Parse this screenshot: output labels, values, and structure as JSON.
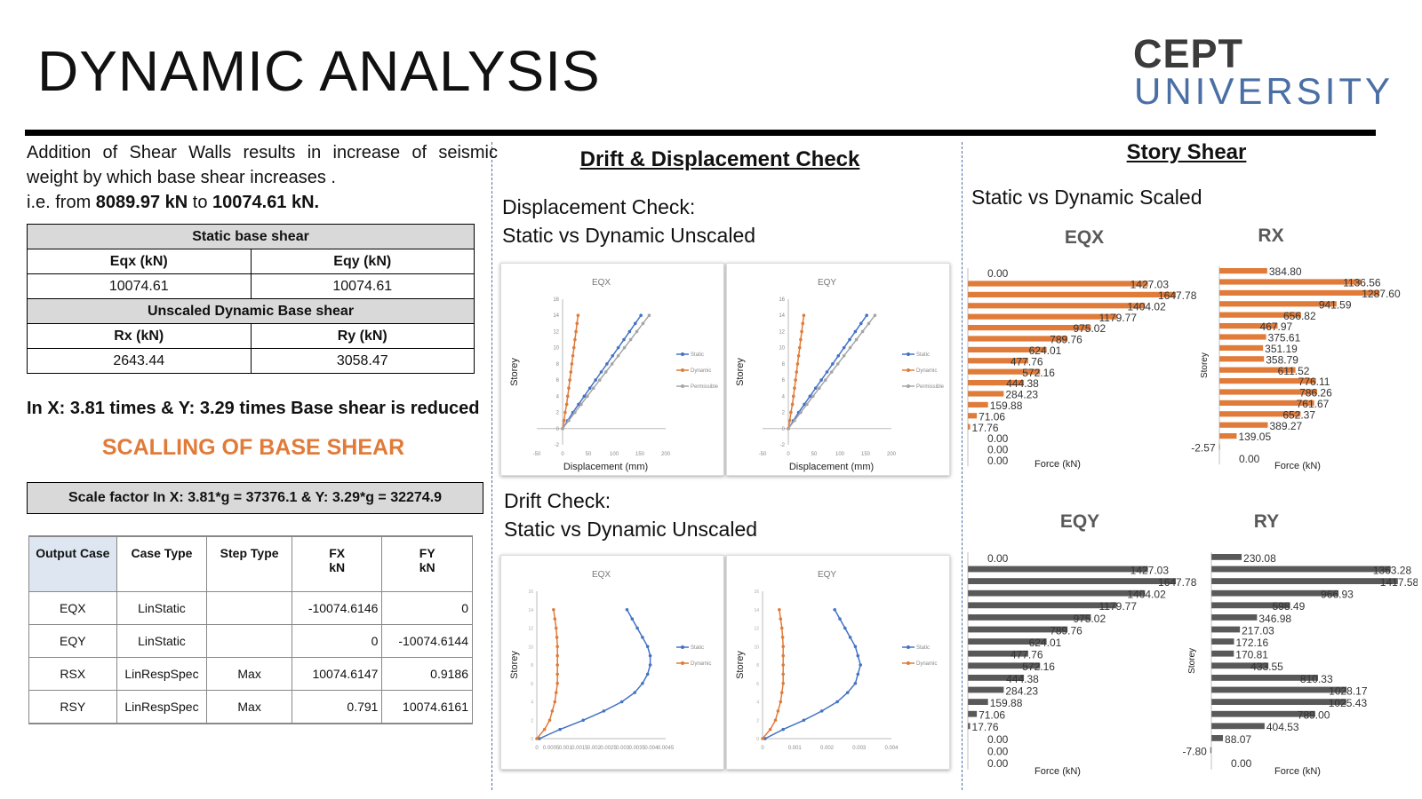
{
  "page": {
    "title": "DYNAMIC ANALYSIS",
    "logo_line1": "CEPT",
    "logo_line2": "UNIVERSITY"
  },
  "left": {
    "intro": "Addition of Shear Walls results in increase of seismic weight by which base shear increases .",
    "intro_ie": "i.e. from ",
    "from_value": "8089.97 kN",
    "to_word": " to ",
    "to_value": "10074.61 kN.",
    "base_shear_table": {
      "static_header": "Static base shear",
      "eqx_label": "Eqx (kN)",
      "eqy_label": "Eqy (kN)",
      "eqx_value": "10074.61",
      "eqy_value": "10074.61",
      "dynamic_header": "Unscaled Dynamic Base shear",
      "rx_label": "Rx (kN)",
      "ry_label": "Ry (kN)",
      "rx_value": "2643.44",
      "ry_value": "3058.47"
    },
    "reduced_text": "In X: 3.81 times & Y: 3.29 times Base shear is reduced",
    "scaling_heading": "SCALLING OF BASE SHEAR",
    "scale_factor_text": "Scale factor In X: 3.81*g = 37376.1 & Y: 3.29*g = 32274.9",
    "output_table": {
      "headers": [
        "Output Case",
        "Case Type",
        "Step Type",
        "FX\nkN",
        "FY\nkN"
      ],
      "rows": [
        [
          "EQX",
          "LinStatic",
          "",
          "-10074.6146",
          "0"
        ],
        [
          "EQY",
          "LinStatic",
          "",
          "0",
          "-10074.6144"
        ],
        [
          "RSX",
          "LinRespSpec",
          "Max",
          "10074.6147",
          "0.9186"
        ],
        [
          "RSY",
          "LinRespSpec",
          "Max",
          "0.791",
          "10074.6161"
        ]
      ]
    }
  },
  "middle": {
    "heading": "Drift & Displacement Check",
    "disp_line1": "Displacement Check:",
    "disp_line2": "Static vs Dynamic Unscaled",
    "drift_line1": "Drift Check:",
    "drift_line2": "Static vs Dynamic Unscaled"
  },
  "right": {
    "heading": "Story Shear",
    "subheading": "Static vs Dynamic Scaled"
  },
  "colors": {
    "orange": "#e07b39",
    "blue": "#4472c4",
    "gray": "#a5a5a5",
    "darkgray": "#595959",
    "scaling_orange": "#e07b39"
  },
  "chart_data": [
    {
      "type": "line",
      "title": "EQX",
      "xlabel": "Displacement (mm)",
      "ylabel": "Storey",
      "xlim": [
        -50,
        200
      ],
      "ylim": [
        -2,
        16
      ],
      "x_ticks": [
        "-50",
        "0",
        "50",
        "100",
        "150",
        "200"
      ],
      "y_ticks": [
        "-2",
        "0",
        "2",
        "4",
        "6",
        "8",
        "10",
        "12",
        "14",
        "16"
      ],
      "legend": "right",
      "series": [
        {
          "name": "Static",
          "color": "#4472c4",
          "x": [
            0,
            10,
            20,
            31,
            42,
            53,
            64,
            75,
            86,
            97,
            108,
            119,
            130,
            141,
            152
          ],
          "y": [
            0,
            1,
            2,
            3,
            4,
            5,
            6,
            7,
            8,
            9,
            10,
            11,
            12,
            13,
            14
          ]
        },
        {
          "name": "Dynamic",
          "color": "#e07b39",
          "x": [
            0,
            3,
            5,
            8,
            10,
            12,
            14,
            16,
            18,
            20,
            22,
            24,
            26,
            28,
            30
          ],
          "y": [
            0,
            1,
            2,
            3,
            4,
            5,
            6,
            7,
            8,
            9,
            10,
            11,
            12,
            13,
            14
          ]
        },
        {
          "name": "Permissible",
          "color": "#a5a5a5",
          "x": [
            0,
            12,
            24,
            36,
            48,
            60,
            72,
            84,
            96,
            108,
            120,
            132,
            144,
            156,
            168
          ],
          "y": [
            0,
            1,
            2,
            3,
            4,
            5,
            6,
            7,
            8,
            9,
            10,
            11,
            12,
            13,
            14
          ]
        }
      ]
    },
    {
      "type": "line",
      "title": "EQY",
      "xlabel": "Displacement (mm)",
      "ylabel": "Storey",
      "xlim": [
        -50,
        200
      ],
      "ylim": [
        -2,
        16
      ],
      "x_ticks": [
        "-50",
        "0",
        "50",
        "100",
        "150",
        "200"
      ],
      "y_ticks": [
        "-2",
        "0",
        "2",
        "4",
        "6",
        "8",
        "10",
        "12",
        "14",
        "16"
      ],
      "legend": "right",
      "series": [
        {
          "name": "Static",
          "color": "#4472c4",
          "x": [
            0,
            10,
            20,
            31,
            42,
            53,
            64,
            75,
            86,
            97,
            108,
            119,
            130,
            141,
            152
          ],
          "y": [
            0,
            1,
            2,
            3,
            4,
            5,
            6,
            7,
            8,
            9,
            10,
            11,
            12,
            13,
            14
          ]
        },
        {
          "name": "Dynamic",
          "color": "#e07b39",
          "x": [
            0,
            3,
            5,
            8,
            10,
            12,
            14,
            16,
            18,
            20,
            22,
            24,
            26,
            28,
            30
          ],
          "y": [
            0,
            1,
            2,
            3,
            4,
            5,
            6,
            7,
            8,
            9,
            10,
            11,
            12,
            13,
            14
          ]
        },
        {
          "name": "Permissible",
          "color": "#a5a5a5",
          "x": [
            0,
            12,
            24,
            36,
            48,
            60,
            72,
            84,
            96,
            108,
            120,
            132,
            144,
            156,
            168
          ],
          "y": [
            0,
            1,
            2,
            3,
            4,
            5,
            6,
            7,
            8,
            9,
            10,
            11,
            12,
            13,
            14
          ]
        }
      ]
    },
    {
      "type": "line",
      "title": "EQX",
      "xlabel": "",
      "ylabel": "Storey",
      "xlim": [
        0,
        0.005
      ],
      "ylim": [
        0,
        16
      ],
      "x_ticks": [
        "0",
        "0.0005",
        "0.001",
        "0.0015",
        "0.002",
        "0.0025",
        "0.003",
        "0.0035",
        "0.004",
        "0.0045"
      ],
      "legend": "right",
      "series": [
        {
          "name": "Static",
          "color": "#4472c4",
          "x": [
            0.0001,
            0.0009,
            0.0018,
            0.0026,
            0.0033,
            0.0038,
            0.0041,
            0.0043,
            0.0044,
            0.0044,
            0.0043,
            0.0041,
            0.0039,
            0.0037,
            0.0035
          ],
          "y": [
            0,
            1,
            2,
            3,
            4,
            5,
            6,
            7,
            8,
            9,
            10,
            11,
            12,
            13,
            14
          ]
        },
        {
          "name": "Dynamic",
          "color": "#e07b39",
          "x": [
            0,
            0.0003,
            0.0005,
            0.0006,
            0.0007,
            0.00075,
            0.0008,
            0.0008,
            0.0008,
            0.0008,
            0.0008,
            0.00078,
            0.00075,
            0.0007,
            0.00065
          ],
          "y": [
            0,
            1,
            2,
            3,
            4,
            5,
            6,
            7,
            8,
            9,
            10,
            11,
            12,
            13,
            14
          ]
        }
      ]
    },
    {
      "type": "line",
      "title": "EQY",
      "xlabel": "",
      "ylabel": "Storey",
      "xlim": [
        0,
        0.005
      ],
      "ylim": [
        0,
        16
      ],
      "x_ticks": [
        "0",
        "0.001",
        "0.002",
        "0.003",
        "0.004"
      ],
      "legend": "right",
      "series": [
        {
          "name": "Static",
          "color": "#4472c4",
          "x": [
            0.0001,
            0.0008,
            0.0016,
            0.0023,
            0.0029,
            0.0033,
            0.0036,
            0.0037,
            0.0038,
            0.0037,
            0.0036,
            0.0034,
            0.0032,
            0.003,
            0.0028
          ],
          "y": [
            0,
            1,
            2,
            3,
            4,
            5,
            6,
            7,
            8,
            9,
            10,
            11,
            12,
            13,
            14
          ]
        },
        {
          "name": "Dynamic",
          "color": "#e07b39",
          "x": [
            0,
            0.0003,
            0.0005,
            0.0006,
            0.0007,
            0.00075,
            0.0008,
            0.0008,
            0.0008,
            0.0008,
            0.0008,
            0.00078,
            0.00075,
            0.0007,
            0.00065
          ],
          "y": [
            0,
            1,
            2,
            3,
            4,
            5,
            6,
            7,
            8,
            9,
            10,
            11,
            12,
            13,
            14
          ]
        }
      ]
    },
    {
      "type": "bar",
      "title": "EQX",
      "xlabel": "Force (kN)",
      "ylabel": "",
      "color": "#e07b39",
      "values": [
        0.0,
        1427.03,
        1647.78,
        1404.02,
        1179.77,
        975.02,
        789.76,
        624.01,
        477.76,
        572.16,
        444.38,
        284.23,
        159.88,
        71.06,
        17.76,
        0.0,
        0.0,
        0.0
      ],
      "labels": [
        "0.00",
        "1427.03",
        "1647.78",
        "1404.02",
        "1179.77",
        "975.02",
        "789.76",
        "624.01",
        "477.76",
        "572.16",
        "444.38",
        "284.23",
        "159.88",
        "71.06",
        "17.76",
        "0.00",
        "0.00",
        "0.00"
      ]
    },
    {
      "type": "bar",
      "title": "RX",
      "xlabel": "Force (kN)",
      "ylabel": "Storey",
      "color": "#e07b39",
      "values": [
        384.8,
        1136.56,
        1287.6,
        941.59,
        656.82,
        467.97,
        375.61,
        351.19,
        358.79,
        611.52,
        776.11,
        786.26,
        761.67,
        652.37,
        389.27,
        139.05,
        -2.57,
        0.0
      ],
      "labels": [
        "384.80",
        "1136.56",
        "1287.60",
        "941.59",
        "656.82",
        "467.97",
        "375.61",
        "351.19",
        "358.79",
        "611.52",
        "776.11",
        "786.26",
        "761.67",
        "652.37",
        "389.27",
        "139.05",
        "-2.57",
        "0.00"
      ]
    },
    {
      "type": "bar",
      "title": "EQY",
      "xlabel": "Force (kN)",
      "ylabel": "",
      "color": "#595959",
      "values": [
        0.0,
        1427.03,
        1647.78,
        1404.02,
        1179.77,
        975.02,
        789.76,
        624.01,
        477.76,
        572.16,
        444.38,
        284.23,
        159.88,
        71.06,
        17.76,
        0.0,
        0.0,
        0.0
      ],
      "labels": [
        "0.00",
        "1427.03",
        "1647.78",
        "1404.02",
        "1179.77",
        "975.02",
        "789.76",
        "624.01",
        "477.76",
        "572.16",
        "444.38",
        "284.23",
        "159.88",
        "71.06",
        "17.76",
        "0.00",
        "0.00",
        "0.00"
      ]
    },
    {
      "type": "bar",
      "title": "RY",
      "xlabel": "Force (kN)",
      "ylabel": "Storey",
      "color": "#595959",
      "values": [
        230.08,
        1363.28,
        1417.58,
        966.93,
        598.49,
        346.98,
        217.03,
        172.16,
        170.81,
        433.55,
        810.33,
        1028.17,
        1025.43,
        789.0,
        404.53,
        88.07,
        -7.8,
        0.0
      ],
      "labels": [
        "230.08",
        "1363.28",
        "1417.58",
        "966.93",
        "598.49",
        "346.98",
        "217.03",
        "172.16",
        "170.81",
        "433.55",
        "810.33",
        "1028.17",
        "1025.43",
        "789.00",
        "404.53",
        "88.07",
        "-7.80",
        "0.00"
      ]
    }
  ]
}
